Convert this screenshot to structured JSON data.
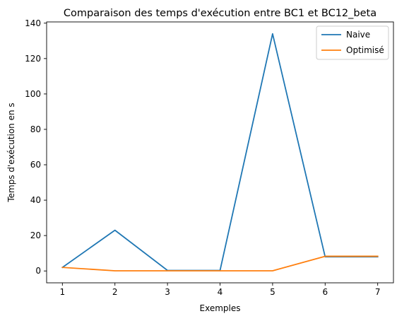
{
  "chart_data": {
    "type": "line",
    "title": "Comparaison des temps d'exécution entre BC1 et BC12_beta",
    "xlabel": "Exemples",
    "ylabel": "Temps d'exécution en s",
    "x": [
      1,
      2,
      3,
      4,
      5,
      6,
      7
    ],
    "xticks": [
      "1",
      "2",
      "3",
      "4",
      "5",
      "6",
      "7"
    ],
    "yticks": [
      "0",
      "20",
      "40",
      "60",
      "80",
      "100",
      "120",
      "140"
    ],
    "xlim": [
      0.7,
      7.3
    ],
    "ylim": [
      -6.7,
      140.7
    ],
    "grid": false,
    "legend_position": "top-right",
    "series": [
      {
        "name": "Naive",
        "color": "#1f77b4",
        "values": [
          2,
          23,
          0.3,
          0.3,
          134,
          8,
          8
        ]
      },
      {
        "name": "Optimisé",
        "color": "#ff7f0e",
        "values": [
          2,
          0.1,
          0.1,
          0.1,
          0.1,
          8.3,
          8.3
        ]
      }
    ]
  }
}
